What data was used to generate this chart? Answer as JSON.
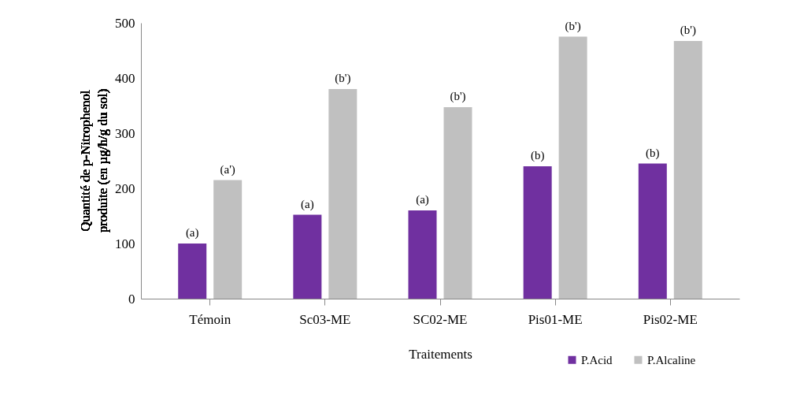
{
  "chart_data": {
    "type": "bar",
    "xlabel": "Traitements",
    "ylabel": "Quantité de p-Nitrophenol produite (en µg/h/g du sol)",
    "categories": [
      "Témoin",
      "Sc03-ME",
      "SC02-ME",
      "Pis01-ME",
      "Pis02-ME"
    ],
    "series": [
      {
        "name": "P.Acid",
        "color": "#7030a0",
        "values": [
          100,
          152,
          160,
          240,
          245
        ],
        "value_labels": [
          "(a)",
          "(a)",
          "(a)",
          "(b)",
          "(b)"
        ]
      },
      {
        "name": "P.Alcaline",
        "color": "#c0c0c0",
        "values": [
          215,
          380,
          347,
          475,
          467
        ],
        "value_labels": [
          "(a')",
          "(b')",
          "(b')",
          "(b')",
          "(b')"
        ]
      }
    ],
    "ylim": [
      0,
      500
    ],
    "yticks": [
      0,
      100,
      200,
      300,
      400,
      500
    ],
    "grid": false,
    "legend": "bottom right"
  }
}
